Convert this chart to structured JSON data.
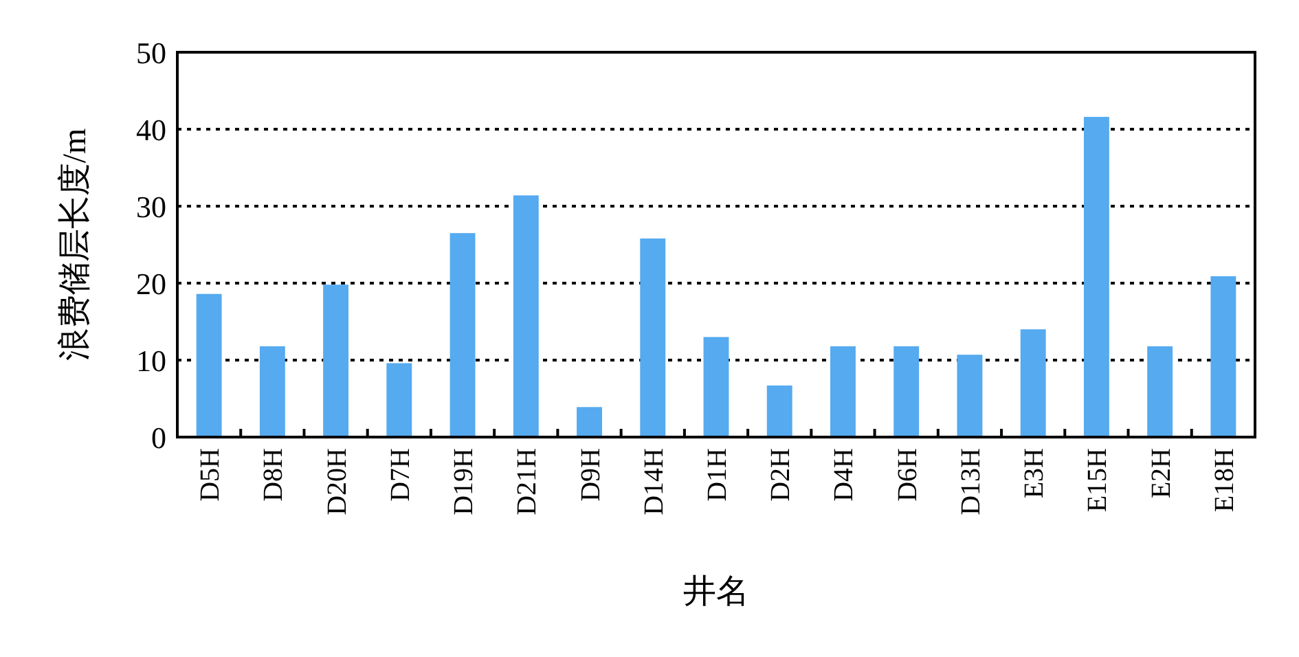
{
  "chart_data": {
    "type": "bar",
    "xlabel": "井名",
    "ylabel": "浪费储层长度/m",
    "categories": [
      "D5H",
      "D8H",
      "D20H",
      "D7H",
      "D19H",
      "D21H",
      "D9H",
      "D14H",
      "D1H",
      "D2H",
      "D4H",
      "D6H",
      "D13H",
      "E3H",
      "E15H",
      "E2H",
      "E18H"
    ],
    "values": [
      18.6,
      11.8,
      19.8,
      9.6,
      26.5,
      31.4,
      3.9,
      25.8,
      13,
      6.7,
      11.8,
      11.8,
      10.7,
      14,
      41.6,
      11.8,
      20.9
    ],
    "color": "#55aaf0",
    "ylim": [
      0,
      50
    ],
    "yticks": [
      0,
      10,
      20,
      30,
      40,
      50
    ],
    "grid": "y",
    "line_style": "dotted"
  }
}
